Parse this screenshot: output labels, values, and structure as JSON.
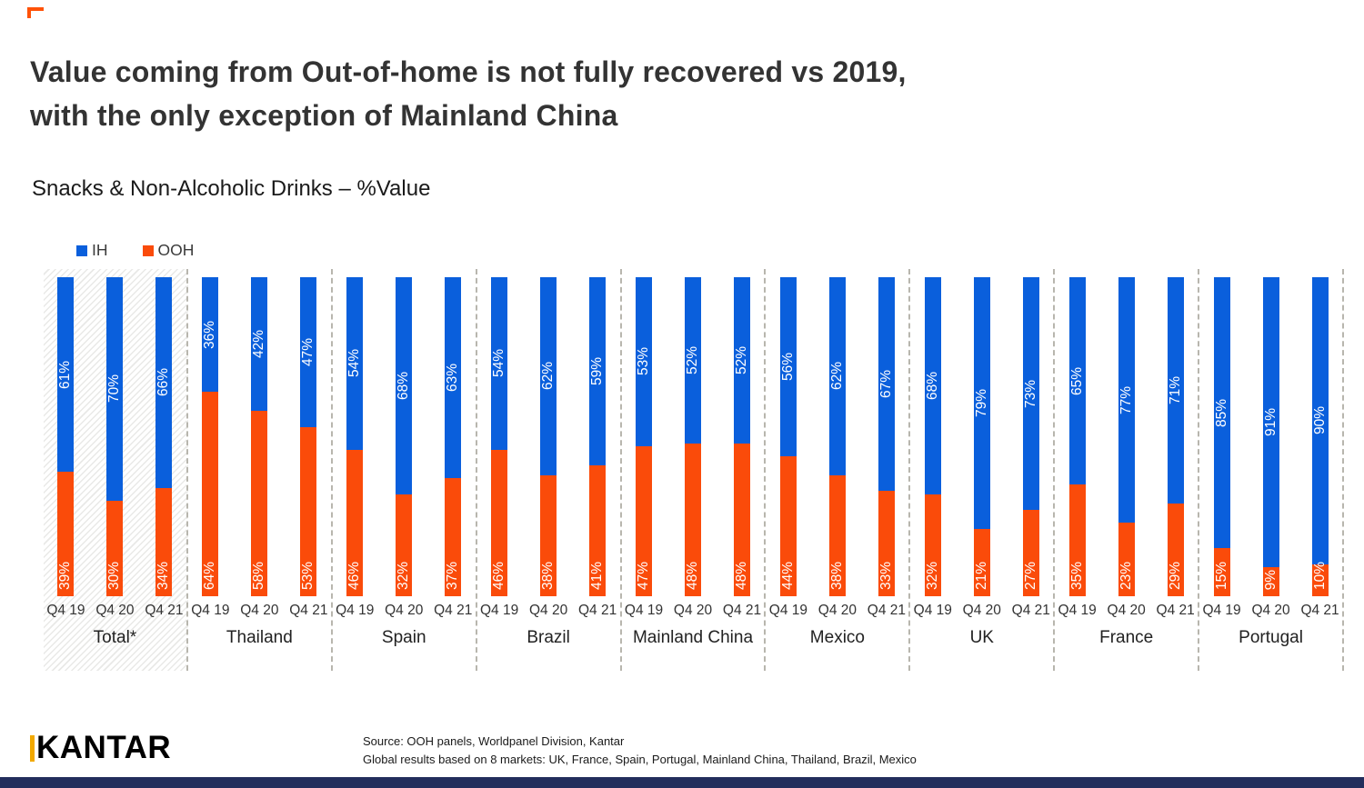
{
  "page": {
    "title_line1": "Value coming from Out-of-home is not fully recovered vs 2019,",
    "title_line2": "with the only exception of Mainland China",
    "subtitle": "Snacks & Non-Alcoholic Drinks – %Value"
  },
  "legend": {
    "items": [
      {
        "label": "IH",
        "color": "#0A5FDC"
      },
      {
        "label": "OOH",
        "color": "#FA4B0A"
      }
    ]
  },
  "chart_data": {
    "type": "bar",
    "stacked": true,
    "unit": "%",
    "title": "Snacks & Non-Alcoholic Drinks – %Value",
    "ylim": [
      0,
      100
    ],
    "grid": false,
    "legend_position": "top-left",
    "series_names": [
      "IH",
      "OOH"
    ],
    "x_tick_labels": [
      "Q4 19",
      "Q4 20",
      "Q4 21"
    ],
    "groups": [
      {
        "label": "Total*",
        "highlight": true,
        "IH": [
          61,
          70,
          66
        ],
        "OOH": [
          39,
          30,
          34
        ]
      },
      {
        "label": "Thailand",
        "highlight": false,
        "IH": [
          36,
          42,
          47
        ],
        "OOH": [
          64,
          58,
          53
        ]
      },
      {
        "label": "Spain",
        "highlight": false,
        "IH": [
          54,
          68,
          63
        ],
        "OOH": [
          46,
          32,
          37
        ]
      },
      {
        "label": "Brazil",
        "highlight": false,
        "IH": [
          54,
          62,
          59
        ],
        "OOH": [
          46,
          38,
          41
        ]
      },
      {
        "label": "Mainland China",
        "highlight": false,
        "IH": [
          53,
          52,
          52
        ],
        "OOH": [
          47,
          48,
          48
        ]
      },
      {
        "label": "Mexico",
        "highlight": false,
        "IH": [
          56,
          62,
          67
        ],
        "OOH": [
          44,
          38,
          33
        ]
      },
      {
        "label": "UK",
        "highlight": false,
        "IH": [
          68,
          79,
          73
        ],
        "OOH": [
          32,
          21,
          27
        ]
      },
      {
        "label": "France",
        "highlight": false,
        "IH": [
          65,
          77,
          71
        ],
        "OOH": [
          35,
          23,
          29
        ]
      },
      {
        "label": "Portugal",
        "highlight": false,
        "IH": [
          85,
          91,
          90
        ],
        "OOH": [
          15,
          9,
          10
        ]
      }
    ]
  },
  "colors": {
    "ih_blue": "#0A5FDC",
    "ooh_orange": "#FA4B0A",
    "corner_accent": "#FF5208",
    "bottom_bar": "#232E5C",
    "logo_accent": "#F2A900"
  },
  "footer": {
    "logo_text": "KANTAR",
    "source_line1": "Source: OOH panels, Worldpanel Division, Kantar",
    "source_line2": "Global results based on 8 markets: UK, France, Spain, Portugal, Mainland China, Thailand, Brazil, Mexico"
  }
}
